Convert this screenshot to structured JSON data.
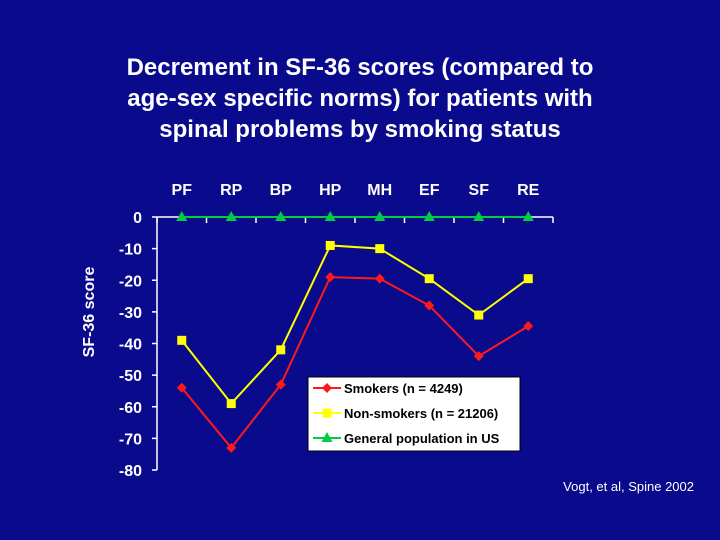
{
  "title_lines": [
    "Decrement in SF-36 scores (compared to",
    "age-sex specific norms) for patients with",
    "spinal problems by smoking status"
  ],
  "credit": "Vogt, et al, Spine 2002",
  "colors": {
    "background": "#0a0a8c",
    "text": "#ffffff",
    "smokers": "#ff1a1a",
    "non_smokers": "#ffff00",
    "general": "#00cc44",
    "legend_bg": "#ffffff"
  },
  "chart_data": {
    "type": "line",
    "title": "Decrement in SF-36 scores (compared to age-sex specific norms) for patients with spinal problems by smoking status",
    "ylabel": "SF-36 score",
    "xlabel": "",
    "categories": [
      "PF",
      "RP",
      "BP",
      "HP",
      "MH",
      "EF",
      "SF",
      "RE"
    ],
    "ylim": [
      -80,
      0
    ],
    "yticks": [
      0,
      -10,
      -20,
      -30,
      -40,
      -50,
      -60,
      -70,
      -80
    ],
    "ytick_labels": [
      "0",
      "-10",
      "-20",
      "-30",
      "-40",
      "-50",
      "-60",
      "-70",
      "-80"
    ],
    "legend_position": "bottom-right",
    "series": [
      {
        "name": "Smokers (n = 4249)",
        "marker": "diamond",
        "color": "#ff1a1a",
        "values": [
          -54,
          -73,
          -53,
          -19,
          -19.5,
          -28,
          -44,
          -34.5
        ]
      },
      {
        "name": "Non-smokers (n = 21206)",
        "marker": "square",
        "color": "#ffff00",
        "values": [
          -39,
          -59,
          -42,
          -9,
          -10,
          -19.5,
          -31,
          -19.5
        ]
      },
      {
        "name": "General population in US",
        "marker": "triangle",
        "color": "#00cc44",
        "values": [
          0,
          0,
          0,
          0,
          0,
          0,
          0,
          0
        ]
      }
    ]
  }
}
